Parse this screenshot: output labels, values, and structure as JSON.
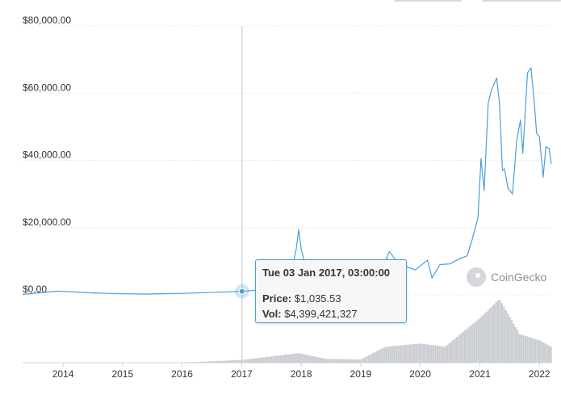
{
  "watermark": {
    "text": "CoinGecko",
    "icon": "coingecko-logo-icon"
  },
  "tooltip": {
    "date": "Tue 03 Jan 2017, 03:00:00",
    "price_label": "Price:",
    "price_value": "$1,035.53",
    "vol_label": "Vol:",
    "vol_value": "$4,399,421,327"
  },
  "colors": {
    "price_line": "#4a9fdb",
    "volume": "#c9ccd1",
    "crosshair": "#c0c4ca",
    "tooltip_border": "#3fa0e3",
    "grid": "#e6e6e6"
  },
  "chart_data": {
    "type": "line",
    "title": "",
    "xlabel": "",
    "ylabel": "",
    "x_tick_labels": [
      "2014",
      "2015",
      "2016",
      "2017",
      "2018",
      "2019",
      "2020",
      "2021",
      "2022"
    ],
    "y_tick_labels": [
      "$0.00",
      "$20,000.00",
      "$40,000.00",
      "$60,000.00",
      "$80,000.00"
    ],
    "ylim": [
      0,
      80000
    ],
    "xlim": [
      "2013-04-28",
      "2022-03-15"
    ],
    "grid": true,
    "highlight": {
      "date": "2017-01-03",
      "price": 1035.53,
      "volume": 4399421327
    },
    "series": [
      {
        "kind": "price",
        "x": [
          "2013-04-28",
          "2013-12-04",
          "2014-06-01",
          "2015-01-01",
          "2015-06-01",
          "2016-01-01",
          "2016-06-01",
          "2017-01-03",
          "2017-05-01",
          "2017-08-01",
          "2017-10-01",
          "2017-11-01",
          "2017-12-01",
          "2017-12-17",
          "2018-01-01",
          "2018-02-06",
          "2018-03-01",
          "2018-05-01",
          "2018-08-01",
          "2018-11-01",
          "2018-12-15",
          "2019-03-01",
          "2019-05-01",
          "2019-06-26",
          "2019-08-01",
          "2019-10-01",
          "2019-12-01",
          "2020-02-15",
          "2020-03-13",
          "2020-05-01",
          "2020-07-01",
          "2020-09-01",
          "2020-10-15",
          "2020-11-15",
          "2020-12-20",
          "2021-01-08",
          "2021-01-27",
          "2021-02-21",
          "2021-03-13",
          "2021-04-14",
          "2021-05-01",
          "2021-05-19",
          "2021-06-01",
          "2021-06-22",
          "2021-07-20",
          "2021-08-15",
          "2021-09-07",
          "2021-09-21",
          "2021-10-20",
          "2021-11-10",
          "2021-12-01",
          "2021-12-15",
          "2022-01-01",
          "2022-01-24",
          "2022-02-10",
          "2022-03-01",
          "2022-03-15"
        ],
        "y": [
          140,
          1100,
          620,
          320,
          230,
          430,
          640,
          1035.53,
          1500,
          3000,
          4400,
          7000,
          13500,
          19400,
          13500,
          7000,
          10500,
          9000,
          7000,
          6300,
          3300,
          3900,
          6500,
          12900,
          10500,
          8500,
          7400,
          10300,
          5000,
          9000,
          9200,
          10800,
          11600,
          16500,
          23000,
          40500,
          31000,
          57000,
          61000,
          64500,
          57000,
          37000,
          37500,
          31700,
          30000,
          46000,
          52000,
          42000,
          66000,
          67500,
          57000,
          48000,
          47000,
          35000,
          44000,
          43500,
          39000
        ]
      },
      {
        "kind": "volume",
        "x": [
          "2013-04-28",
          "2016-01-01",
          "2017-01-03",
          "2017-12-15",
          "2018-06-01",
          "2019-01-01",
          "2019-06-01",
          "2020-01-01",
          "2020-06-01",
          "2021-01-01",
          "2021-05-01",
          "2021-09-01",
          "2022-01-01",
          "2022-03-15"
        ],
        "y": [
          1000000,
          80000000,
          4399421327,
          15000000000,
          6000000000,
          5000000000,
          25000000000,
          30000000000,
          25000000000,
          70000000000,
          100000000000,
          45000000000,
          35000000000,
          25000000000
        ]
      }
    ]
  }
}
